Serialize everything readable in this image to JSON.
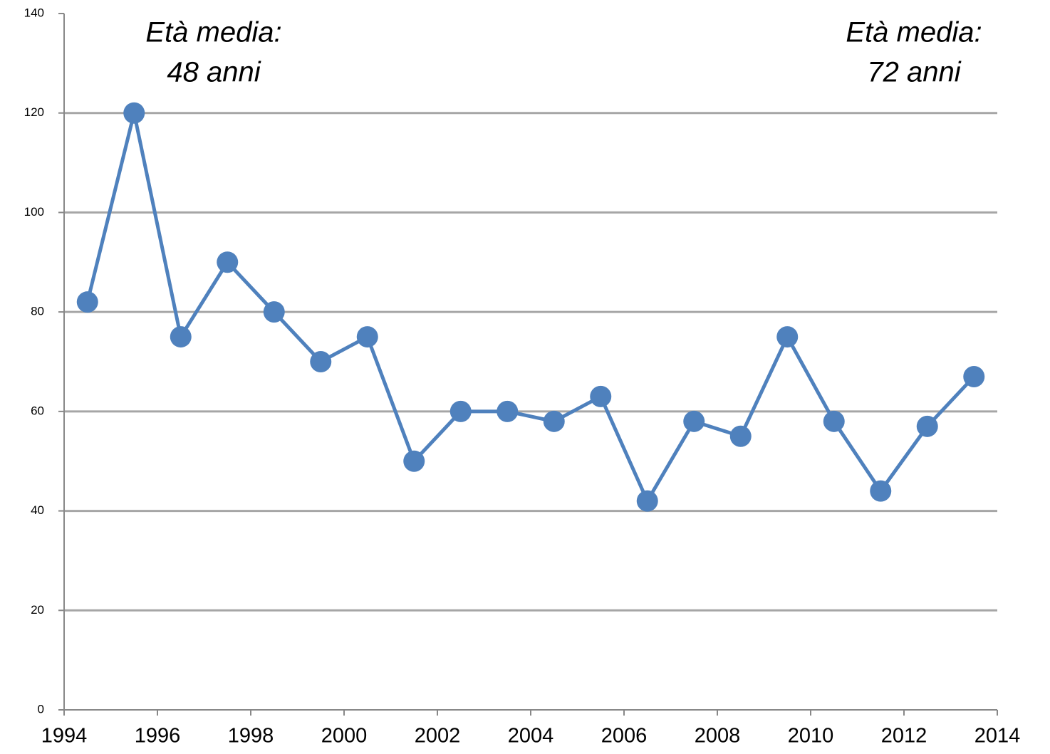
{
  "chart_data": {
    "type": "line",
    "x": [
      1994.5,
      1995.5,
      1996.5,
      1997.5,
      1998.5,
      1999.5,
      2000.5,
      2001.5,
      2002.5,
      2003.5,
      2004.5,
      2005.5,
      2006.5,
      2007.5,
      2008.5,
      2009.5,
      2010.5,
      2011.5,
      2012.5,
      2013.5
    ],
    "series": [
      {
        "color": "#4f81bd",
        "values": [
          82,
          120,
          75,
          90,
          80,
          70,
          75,
          50,
          60,
          60,
          58,
          63,
          42,
          58,
          55,
          75,
          58,
          44,
          57,
          67
        ]
      }
    ],
    "xlim": [
      1994,
      2014
    ],
    "xticks": [
      1994,
      1996,
      1998,
      2000,
      2002,
      2004,
      2006,
      2008,
      2010,
      2012,
      2014
    ],
    "ylim": [
      0,
      140
    ],
    "yticks": [
      0,
      20,
      40,
      60,
      80,
      100,
      120,
      140
    ],
    "grid": true,
    "annotations": [
      [
        "Età media:",
        "48 anni"
      ],
      [
        "Età media:",
        "72 anni"
      ]
    ]
  }
}
